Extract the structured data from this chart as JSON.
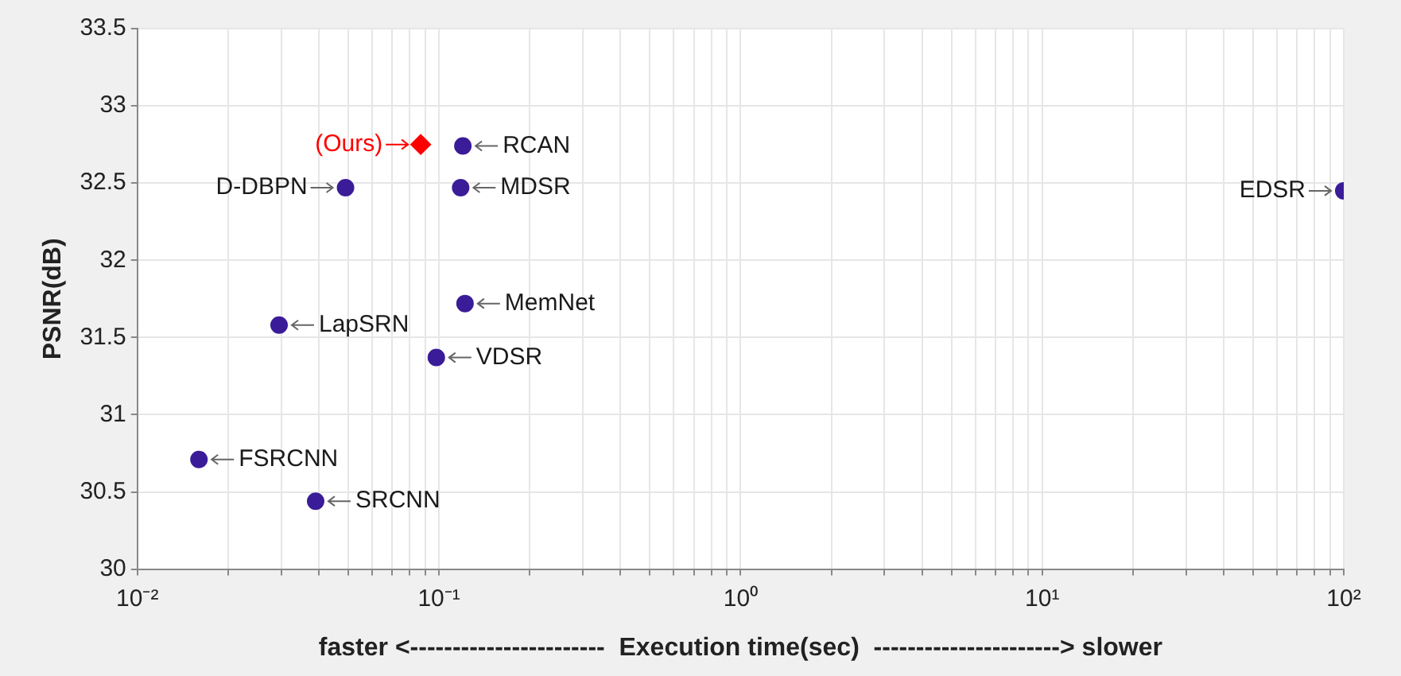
{
  "chart_data": {
    "type": "scatter",
    "xlabel": "faster <-----------------------  Execution time(sec)  ----------------------> slower",
    "ylabel": "PSNR(dB)",
    "log": "x",
    "grid": true,
    "xlim": [
      0.01,
      100
    ],
    "ylim": [
      30,
      33.5
    ],
    "xticks": [
      {
        "value": 0.01,
        "label": "10⁻²"
      },
      {
        "value": 0.02,
        "label": null
      },
      {
        "value": 0.03,
        "label": null
      },
      {
        "value": 0.04,
        "label": null
      },
      {
        "value": 0.05,
        "label": null
      },
      {
        "value": 0.06,
        "label": null
      },
      {
        "value": 0.07,
        "label": null
      },
      {
        "value": 0.08,
        "label": null
      },
      {
        "value": 0.09,
        "label": null
      },
      {
        "value": 0.1,
        "label": "10⁻¹"
      },
      {
        "value": 0.2,
        "label": null
      },
      {
        "value": 0.3,
        "label": null
      },
      {
        "value": 0.4,
        "label": null
      },
      {
        "value": 0.5,
        "label": null
      },
      {
        "value": 0.6,
        "label": null
      },
      {
        "value": 0.7,
        "label": null
      },
      {
        "value": 0.8,
        "label": null
      },
      {
        "value": 0.9,
        "label": null
      },
      {
        "value": 1,
        "label": "10⁰"
      },
      {
        "value": 2,
        "label": null
      },
      {
        "value": 3,
        "label": null
      },
      {
        "value": 4,
        "label": null
      },
      {
        "value": 5,
        "label": null
      },
      {
        "value": 6,
        "label": null
      },
      {
        "value": 7,
        "label": null
      },
      {
        "value": 8,
        "label": null
      },
      {
        "value": 9,
        "label": null
      },
      {
        "value": 10,
        "label": "10¹"
      },
      {
        "value": 20,
        "label": null
      },
      {
        "value": 30,
        "label": null
      },
      {
        "value": 40,
        "label": null
      },
      {
        "value": 50,
        "label": null
      },
      {
        "value": 60,
        "label": null
      },
      {
        "value": 70,
        "label": null
      },
      {
        "value": 80,
        "label": null
      },
      {
        "value": 90,
        "label": null
      },
      {
        "value": 100,
        "label": "10²"
      }
    ],
    "yticks": [
      30,
      30.5,
      31,
      31.5,
      32,
      32.5,
      33,
      33.5
    ],
    "series": [
      {
        "color": "#3b1c98",
        "marker": "circle",
        "x": [
          0.12,
          0.049,
          0.118,
          0.122,
          0.0295,
          0.098,
          0.016,
          0.039,
          100
        ],
        "values": [
          32.74,
          32.47,
          32.47,
          31.72,
          31.58,
          31.37,
          30.71,
          30.44,
          32.45
        ]
      },
      {
        "name": "(Ours)",
        "color": "#ff0000",
        "marker": "diamond",
        "x": [
          0.087
        ],
        "values": [
          32.75
        ]
      }
    ],
    "annotations": [
      {
        "text": "RCAN",
        "x": 0.12,
        "y": 32.74
      },
      {
        "text": "D-DBPN",
        "x": 0.049,
        "y": 32.47
      },
      {
        "text": "MDSR",
        "x": 0.118,
        "y": 32.47
      },
      {
        "text": "MemNet",
        "x": 0.122,
        "y": 31.72
      },
      {
        "text": "LapSRN",
        "x": 0.0295,
        "y": 31.58
      },
      {
        "text": "VDSR",
        "x": 0.098,
        "y": 31.37
      },
      {
        "text": "FSRCNN",
        "x": 0.016,
        "y": 30.71
      },
      {
        "text": "SRCNN",
        "x": 0.039,
        "y": 30.44
      },
      {
        "text": "EDSR",
        "x": 100,
        "y": 32.45
      }
    ]
  }
}
